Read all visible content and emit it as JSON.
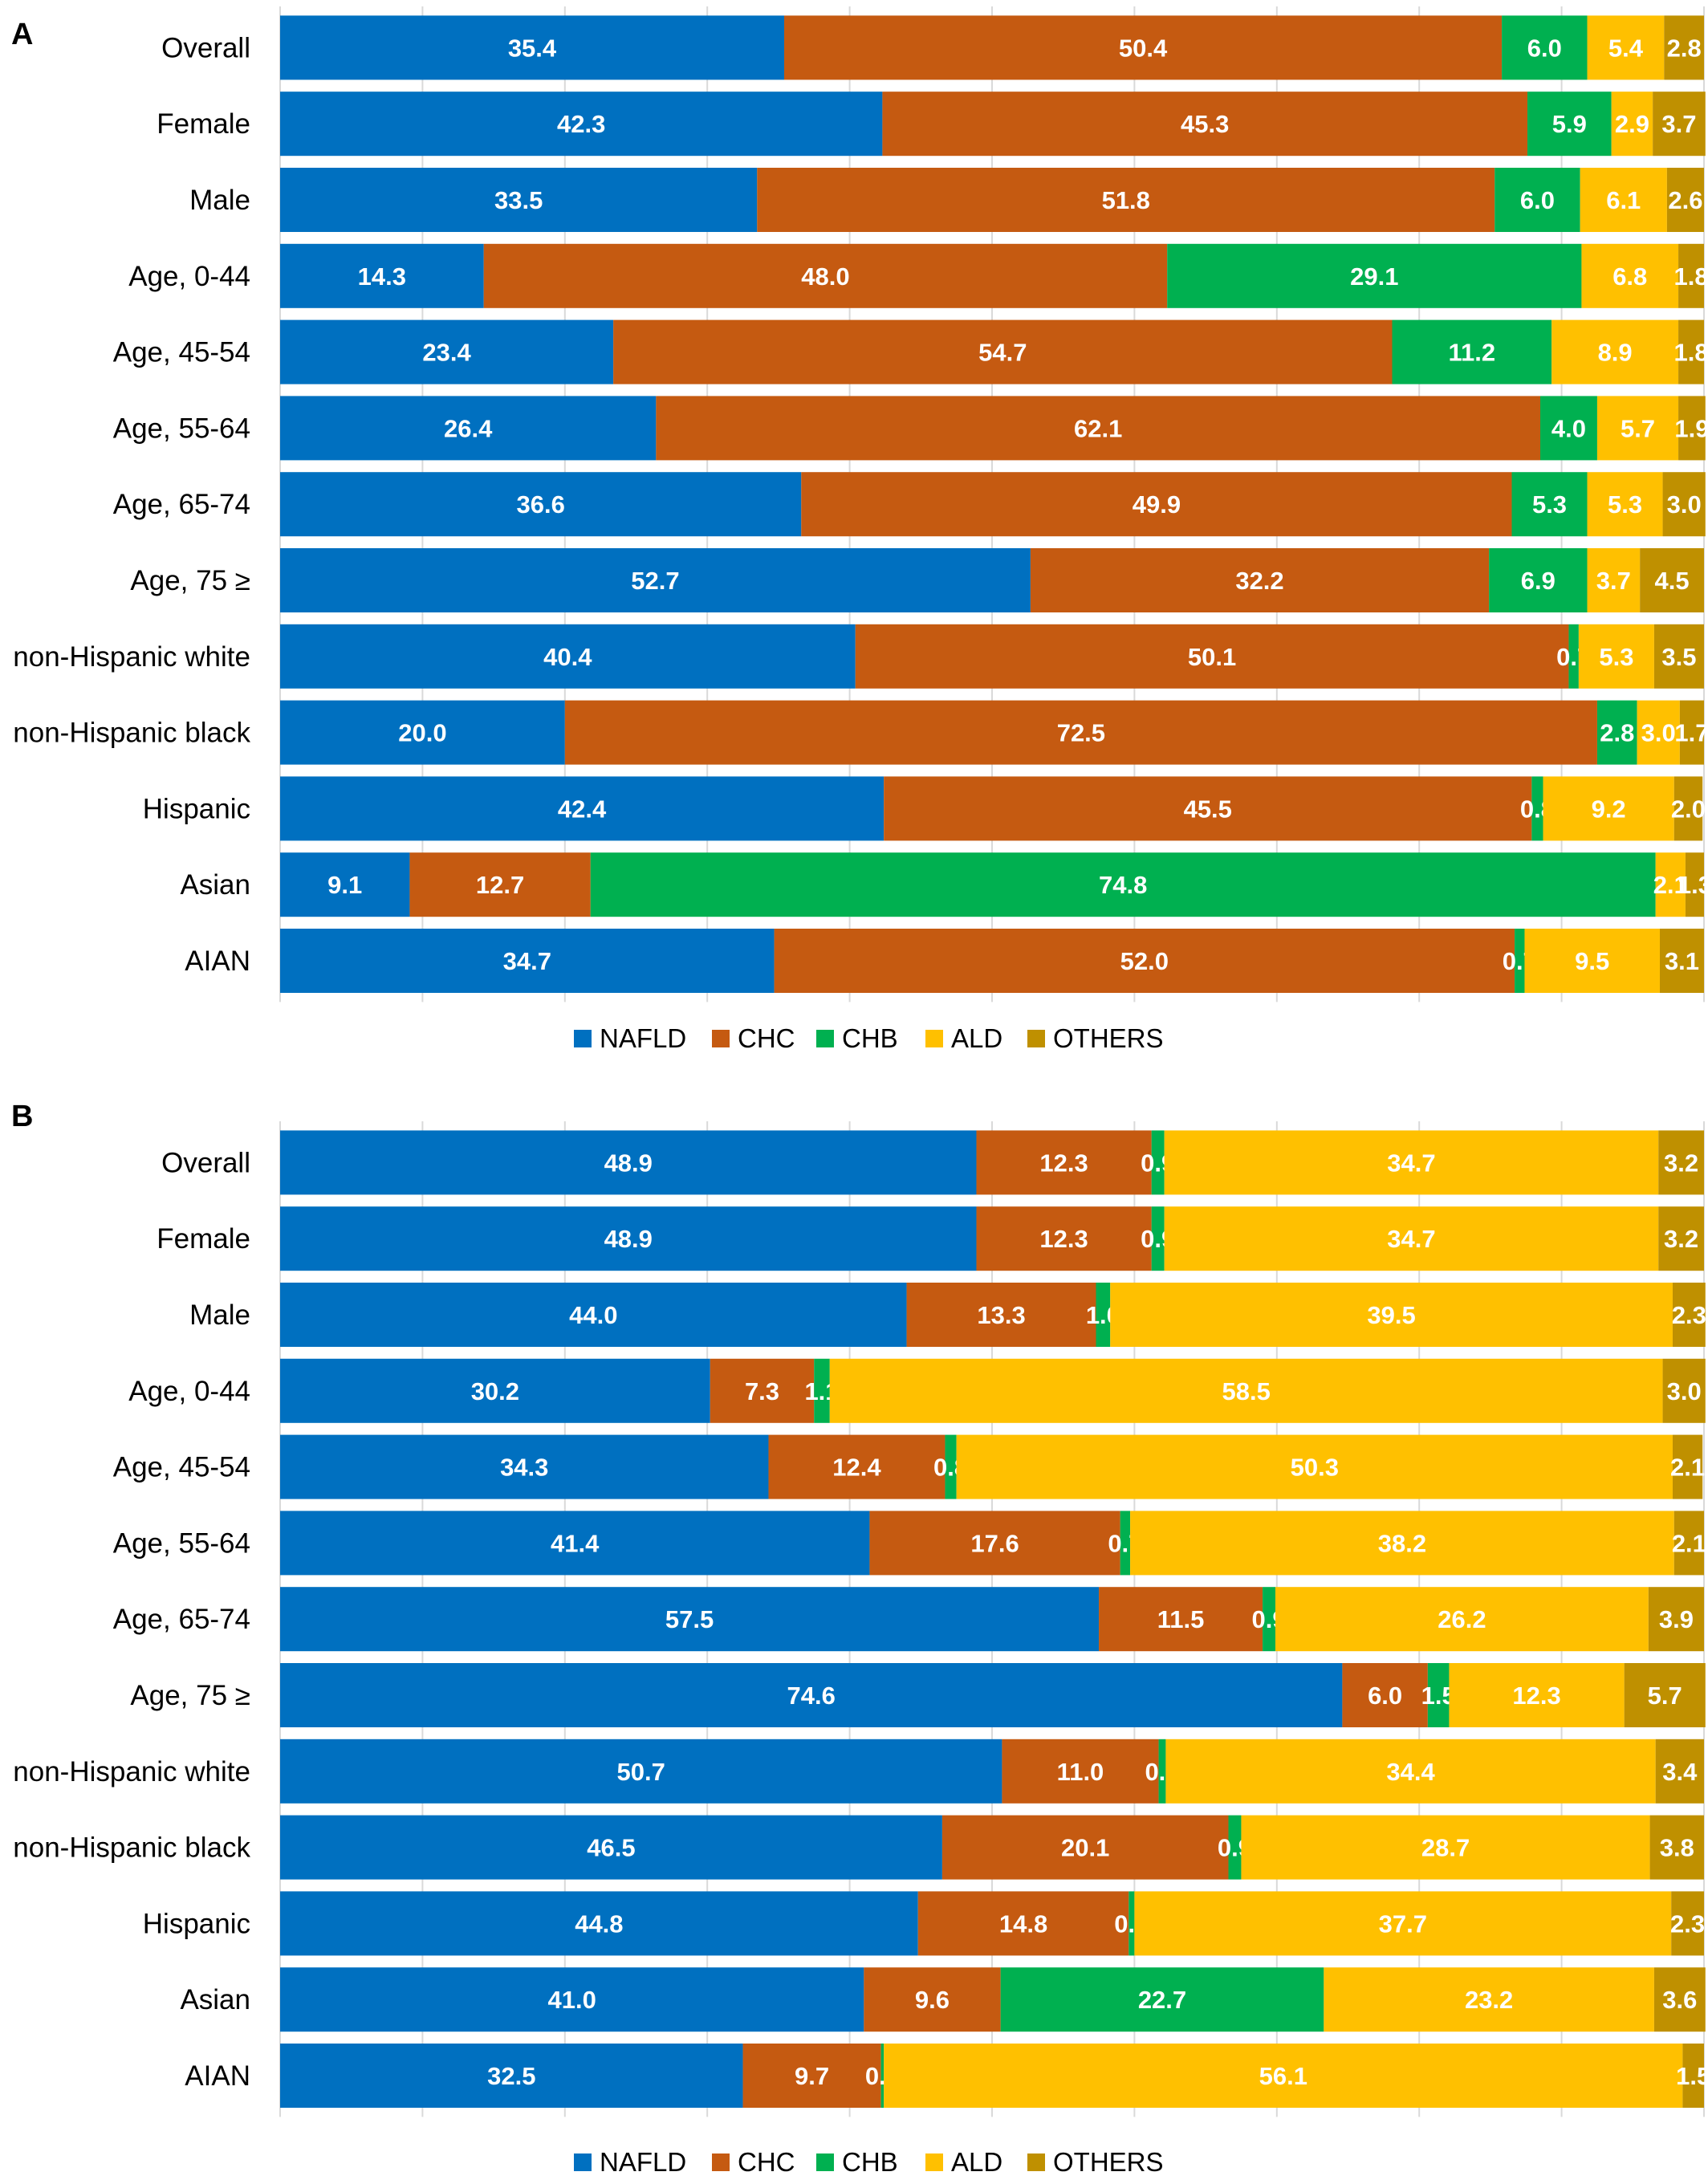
{
  "chart_data": [
    {
      "type": "bar",
      "orientation": "horizontal",
      "stacked": true,
      "panel": "A",
      "categories": [
        "Overall",
        "Female",
        "Male",
        "Age,  0-44",
        "Age,  45-54",
        "Age,  55-64",
        "Age,  65-74",
        "Age, 75 ≥",
        "non-Hispanic white",
        "non-Hispanic black",
        "Hispanic",
        "Asian",
        "AIAN"
      ],
      "series": [
        {
          "name": "NAFLD",
          "values": [
            35.4,
            42.3,
            33.5,
            14.3,
            23.4,
            26.4,
            36.6,
            52.7,
            40.4,
            20.0,
            42.4,
            9.1,
            34.7
          ]
        },
        {
          "name": "CHC",
          "values": [
            50.4,
            45.3,
            51.8,
            48.0,
            54.7,
            62.1,
            49.9,
            32.2,
            50.1,
            72.5,
            45.5,
            12.7,
            52.0
          ]
        },
        {
          "name": "CHB",
          "values": [
            6.0,
            5.9,
            6.0,
            29.1,
            11.2,
            4.0,
            5.3,
            6.9,
            0.7,
            2.8,
            0.8,
            74.8,
            0.7
          ]
        },
        {
          "name": "ALD",
          "values": [
            5.4,
            2.9,
            6.1,
            6.8,
            8.9,
            5.7,
            5.3,
            3.7,
            5.3,
            3.0,
            9.2,
            2.1,
            9.5
          ]
        },
        {
          "name": "OTHERS",
          "values": [
            2.8,
            3.7,
            2.6,
            1.8,
            1.8,
            1.9,
            3.0,
            4.5,
            3.5,
            1.7,
            2.0,
            1.3,
            3.1
          ]
        }
      ],
      "xlim": [
        0,
        100
      ],
      "gridlines": "vertical",
      "legend": "bottom"
    },
    {
      "type": "bar",
      "orientation": "horizontal",
      "stacked": true,
      "panel": "B",
      "categories": [
        "Overall",
        "Female",
        "Male",
        "Age,  0-44",
        "Age,  45-54",
        "Age,  55-64",
        "Age,  65-74",
        "Age, 75 ≥",
        "non-Hispanic white",
        "non-Hispanic black",
        "Hispanic",
        "Asian",
        "AIAN"
      ],
      "series": [
        {
          "name": "NAFLD",
          "values": [
            48.9,
            48.9,
            44.0,
            30.2,
            34.3,
            41.4,
            57.5,
            74.6,
            50.7,
            46.5,
            44.8,
            41.0,
            32.5
          ]
        },
        {
          "name": "CHC",
          "values": [
            12.3,
            12.3,
            13.3,
            7.3,
            12.4,
            17.6,
            11.5,
            6.0,
            11.0,
            20.1,
            14.8,
            9.6,
            9.7
          ]
        },
        {
          "name": "CHB",
          "values": [
            0.9,
            0.9,
            1.0,
            1.1,
            0.8,
            0.7,
            0.9,
            1.5,
            0.5,
            0.9,
            0.4,
            22.7,
            0.2
          ]
        },
        {
          "name": "ALD",
          "values": [
            34.7,
            34.7,
            39.5,
            58.5,
            50.3,
            38.2,
            26.2,
            12.3,
            34.4,
            28.7,
            37.7,
            23.2,
            56.1
          ]
        },
        {
          "name": "OTHERS",
          "values": [
            3.2,
            3.2,
            2.3,
            3.0,
            2.1,
            2.1,
            3.9,
            5.7,
            3.4,
            3.8,
            2.3,
            3.6,
            1.5
          ]
        }
      ],
      "xlim": [
        0,
        100
      ],
      "gridlines": "vertical",
      "legend": "bottom"
    }
  ],
  "colors": {
    "NAFLD": "#0070C0",
    "CHC": "#C55A11",
    "CHB": "#00B050",
    "ALD": "#FFC000",
    "OTHERS": "#BF9000",
    "label_light": "#ffffff"
  }
}
